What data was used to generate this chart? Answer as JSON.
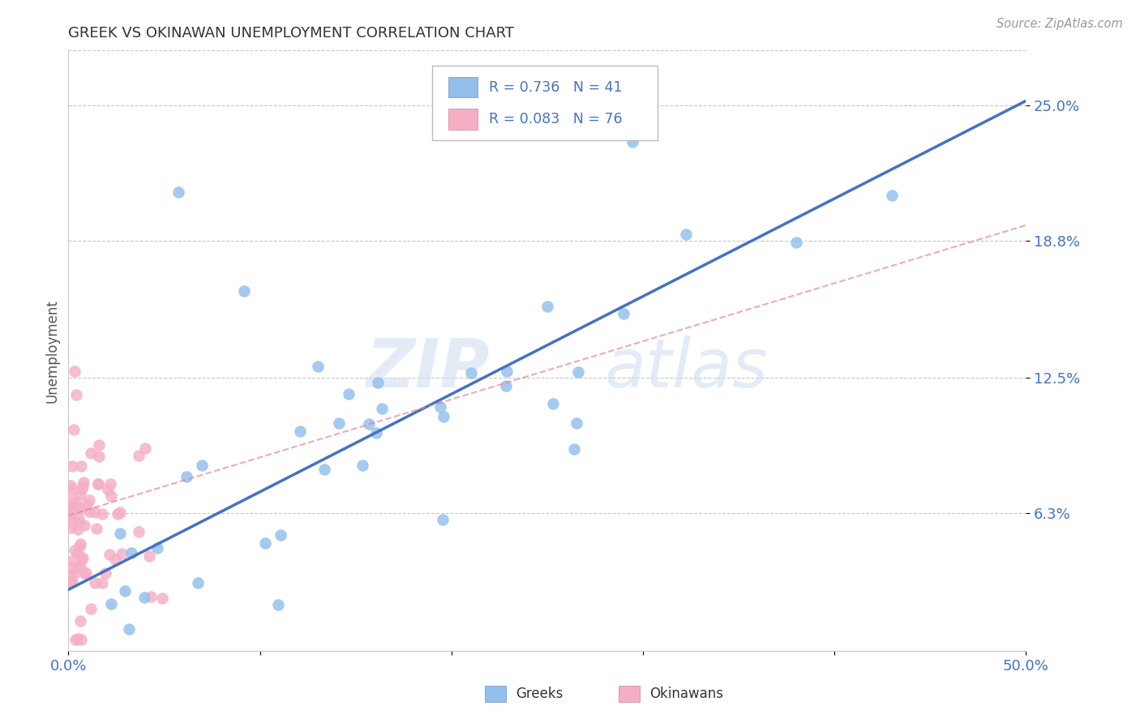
{
  "title": "GREEK VS OKINAWAN UNEMPLOYMENT CORRELATION CHART",
  "source": "Source: ZipAtlas.com",
  "ylabel_label": "Unemployment",
  "y_tick_labels": [
    "6.3%",
    "12.5%",
    "18.8%",
    "25.0%"
  ],
  "x_min": 0.0,
  "x_max": 0.5,
  "y_min": 0.0,
  "y_max": 0.275,
  "y_ticks": [
    0.063,
    0.125,
    0.188,
    0.25
  ],
  "greek_R": 0.736,
  "greek_N": 41,
  "okinawan_R": 0.083,
  "okinawan_N": 76,
  "greek_color": "#92bfec",
  "okinawan_color": "#f5afc5",
  "greek_line_color": "#4472c4",
  "okinawan_line_color": "#e08090",
  "watermark_zip": "ZIP",
  "watermark_atlas": "atlas",
  "background_color": "#ffffff",
  "grid_color": "#c8c8c8",
  "greek_line_x0": 0.0,
  "greek_line_y0": 0.028,
  "greek_line_x1": 0.5,
  "greek_line_y1": 0.252,
  "oki_line_x0": 0.0,
  "oki_line_y0": 0.062,
  "oki_line_x1": 0.5,
  "oki_line_y1": 0.195,
  "greek_seed": 77,
  "oki_seed": 33
}
